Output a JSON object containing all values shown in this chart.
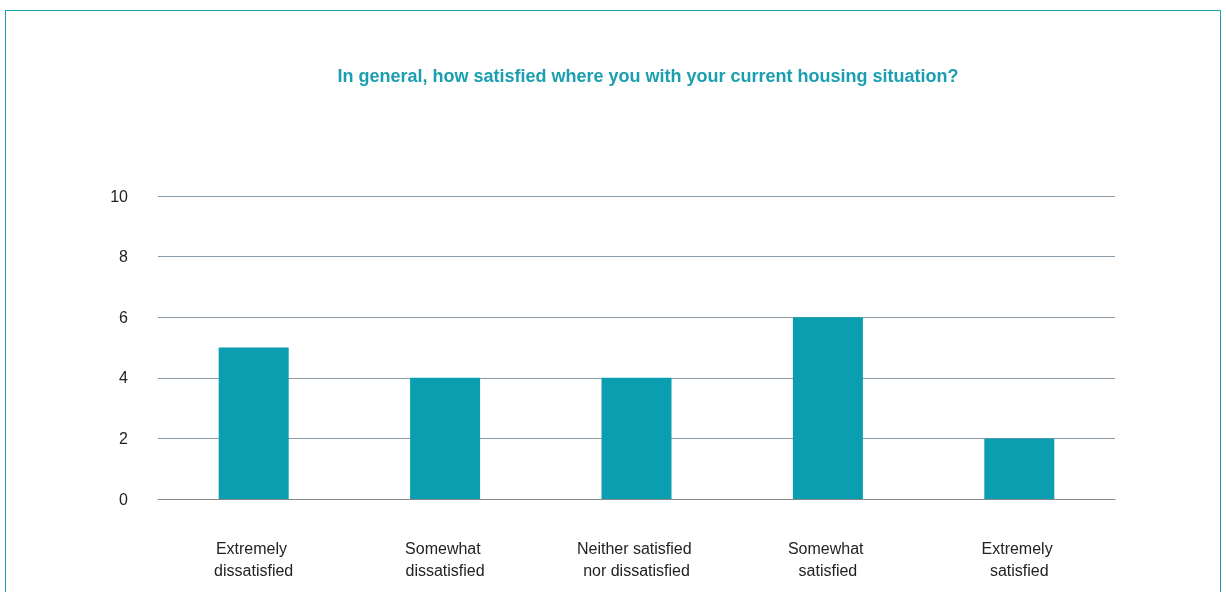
{
  "chart_data": {
    "type": "bar",
    "title": "In general, how satisfied where you with your current housing situation?",
    "categories": [
      "Extremely dissatisfied",
      "Somewhat dissatisfied",
      "Neither satisfied nor dissatisfied",
      "Somewhat satisfied",
      "Extremely satisfied"
    ],
    "values": [
      5,
      4,
      4,
      6,
      2
    ],
    "color": "#0b9eb0",
    "ylim": [
      0,
      10
    ],
    "yticks": [
      0,
      2,
      4,
      6,
      8,
      10
    ],
    "grid": "y"
  }
}
